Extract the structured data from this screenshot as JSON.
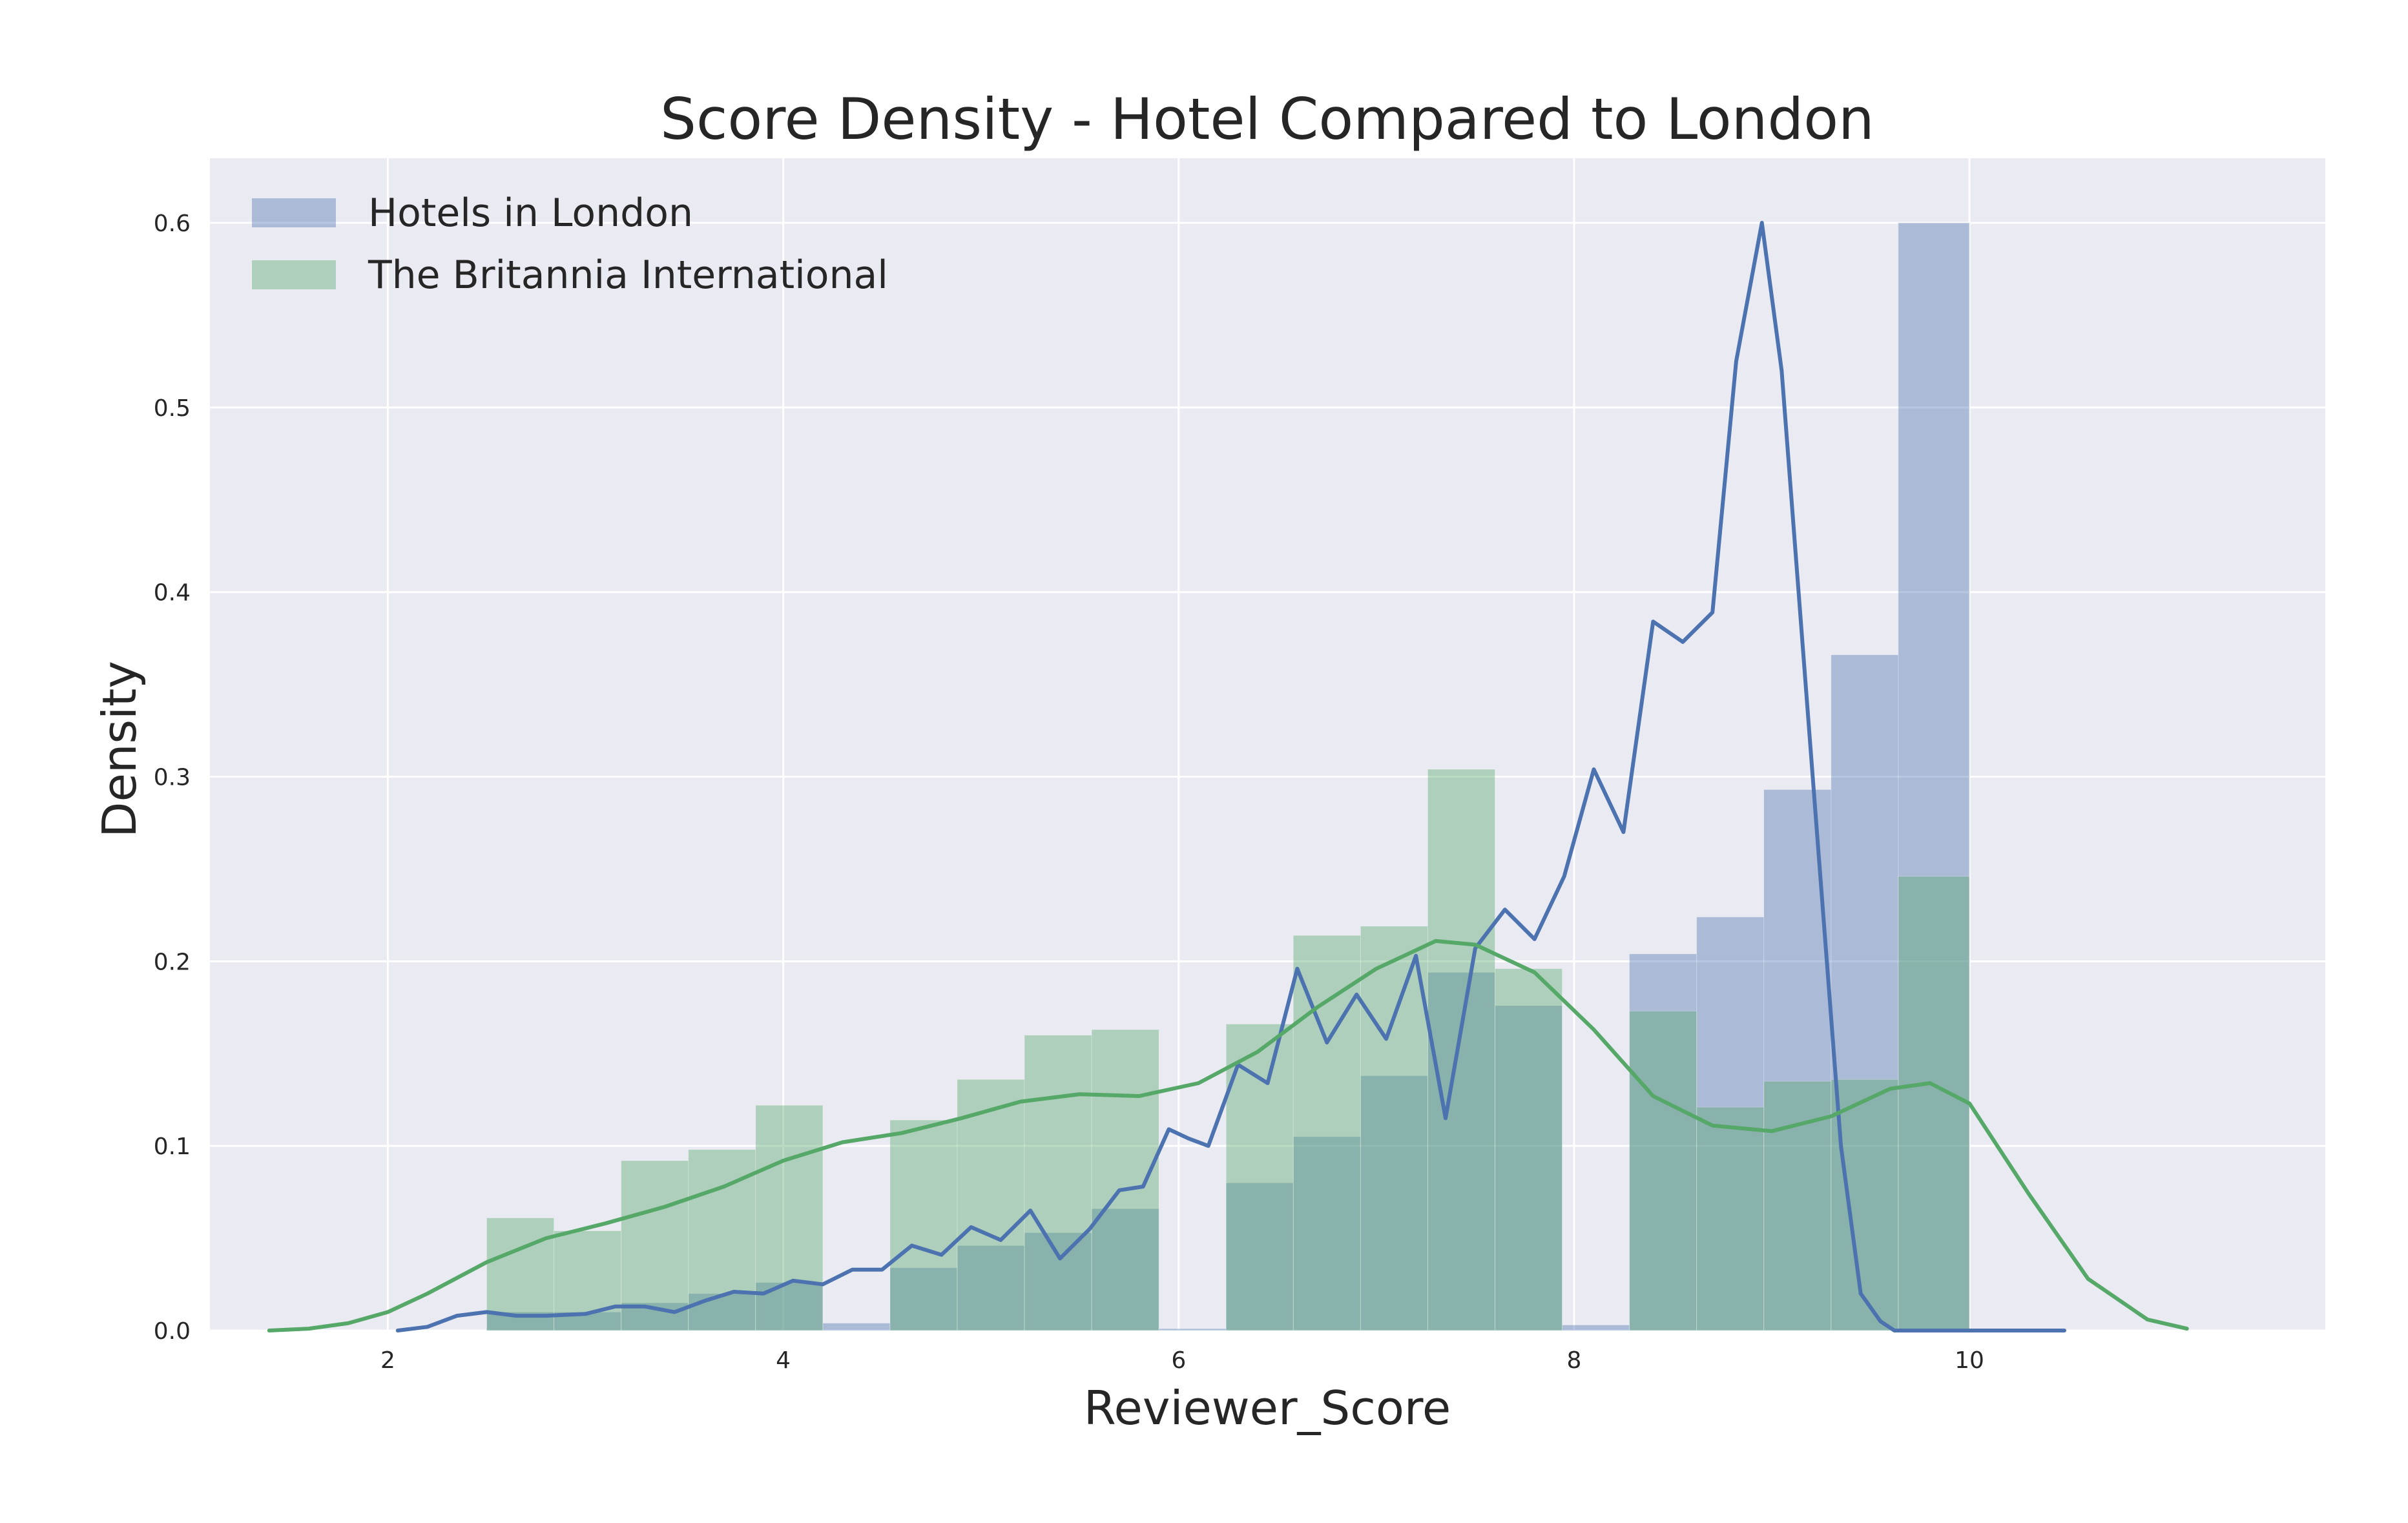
{
  "chart_data": {
    "type": "area",
    "title": "Score Density - Hotel Compared to London",
    "xlabel": "Reviewer_Score",
    "ylabel": "Density",
    "xlim": [
      1.1,
      11.8
    ],
    "ylim": [
      0,
      0.635
    ],
    "x_ticks": [
      "2",
      "4",
      "6",
      "8",
      "10"
    ],
    "y_ticks": [
      "0.0",
      "0.1",
      "0.2",
      "0.3",
      "0.4",
      "0.5",
      "0.6"
    ],
    "grid": true,
    "legend_position": "top-left",
    "series": [
      {
        "name": "Hotels in London",
        "color": "#4c72b0",
        "histogram": {
          "bin_edges": [
            2.5,
            2.84,
            3.18,
            3.52,
            3.86,
            4.2,
            4.54,
            4.88,
            5.22,
            5.56,
            5.9,
            6.24,
            6.58,
            6.92,
            7.26,
            7.6,
            7.94,
            8.28,
            8.62,
            8.96,
            9.3,
            9.64,
            10.0
          ],
          "values": [
            0.01,
            0.01,
            0.015,
            0.02,
            0.026,
            0.004,
            0.034,
            0.046,
            0.053,
            0.066,
            0.001,
            0.08,
            0.105,
            0.138,
            0.194,
            0.176,
            0.003,
            0.204,
            0.224,
            0.293,
            0.366,
            0.6
          ]
        },
        "kde": {
          "x": [
            2.05,
            2.2,
            2.35,
            2.5,
            2.65,
            2.8,
            3.0,
            3.15,
            3.3,
            3.45,
            3.6,
            3.75,
            3.9,
            4.05,
            4.2,
            4.35,
            4.5,
            4.65,
            4.8,
            4.95,
            5.1,
            5.25,
            5.4,
            5.55,
            5.7,
            5.82,
            5.95,
            6.05,
            6.15,
            6.3,
            6.45,
            6.6,
            6.75,
            6.9,
            7.05,
            7.2,
            7.35,
            7.5,
            7.65,
            7.8,
            7.95,
            8.1,
            8.25,
            8.4,
            8.55,
            8.7,
            8.82,
            8.95,
            9.05,
            9.15,
            9.25,
            9.35,
            9.45,
            9.55,
            9.62,
            9.7,
            9.8,
            9.9,
            9.97,
            10.05,
            10.12,
            10.2,
            10.3,
            10.4,
            10.48
          ],
          "y": [
            0.0,
            0.002,
            0.008,
            0.01,
            0.008,
            0.008,
            0.009,
            0.013,
            0.013,
            0.01,
            0.016,
            0.021,
            0.02,
            0.027,
            0.025,
            0.033,
            0.033,
            0.046,
            0.041,
            0.056,
            0.049,
            0.065,
            0.039,
            0.055,
            0.076,
            0.078,
            0.109,
            0.104,
            0.1,
            0.144,
            0.134,
            0.196,
            0.156,
            0.182,
            0.158,
            0.203,
            0.115,
            0.207,
            0.228,
            0.212,
            0.246,
            0.304,
            0.27,
            0.384,
            0.373,
            0.389,
            0.525,
            0.6,
            0.52,
            0.38,
            0.24,
            0.1,
            0.02,
            0.005,
            0.0,
            0.0,
            0.0,
            0.0,
            0.0,
            0.0,
            0.0,
            0.0,
            0.0,
            0.0,
            0.0
          ]
        }
      },
      {
        "name": "The Britannia International",
        "color": "#55a868",
        "histogram": {
          "bin_edges": [
            2.5,
            2.84,
            3.18,
            3.52,
            3.86,
            4.2,
            4.54,
            4.88,
            5.22,
            5.56,
            5.9,
            6.24,
            6.58,
            6.92,
            7.26,
            7.6,
            7.94,
            8.28,
            8.62,
            8.96,
            9.3,
            9.64,
            10.0
          ],
          "values": [
            0.061,
            0.054,
            0.092,
            0.098,
            0.122,
            0.0,
            0.114,
            0.136,
            0.16,
            0.163,
            0.0,
            0.166,
            0.214,
            0.219,
            0.304,
            0.196,
            0.0,
            0.173,
            0.121,
            0.135,
            0.136,
            0.246
          ]
        },
        "kde": {
          "x": [
            1.4,
            1.6,
            1.8,
            2.0,
            2.2,
            2.5,
            2.8,
            3.1,
            3.4,
            3.7,
            4.0,
            4.3,
            4.6,
            4.9,
            5.2,
            5.5,
            5.8,
            6.1,
            6.4,
            6.7,
            7.0,
            7.3,
            7.5,
            7.8,
            8.1,
            8.4,
            8.7,
            9.0,
            9.3,
            9.6,
            9.8,
            10.0,
            10.3,
            10.6,
            10.9,
            11.1
          ],
          "y": [
            0.0,
            0.001,
            0.004,
            0.01,
            0.02,
            0.037,
            0.05,
            0.058,
            0.067,
            0.078,
            0.092,
            0.102,
            0.107,
            0.115,
            0.124,
            0.128,
            0.127,
            0.134,
            0.151,
            0.175,
            0.196,
            0.211,
            0.209,
            0.194,
            0.163,
            0.127,
            0.111,
            0.108,
            0.116,
            0.131,
            0.134,
            0.123,
            0.074,
            0.028,
            0.006,
            0.001
          ]
        }
      }
    ]
  }
}
